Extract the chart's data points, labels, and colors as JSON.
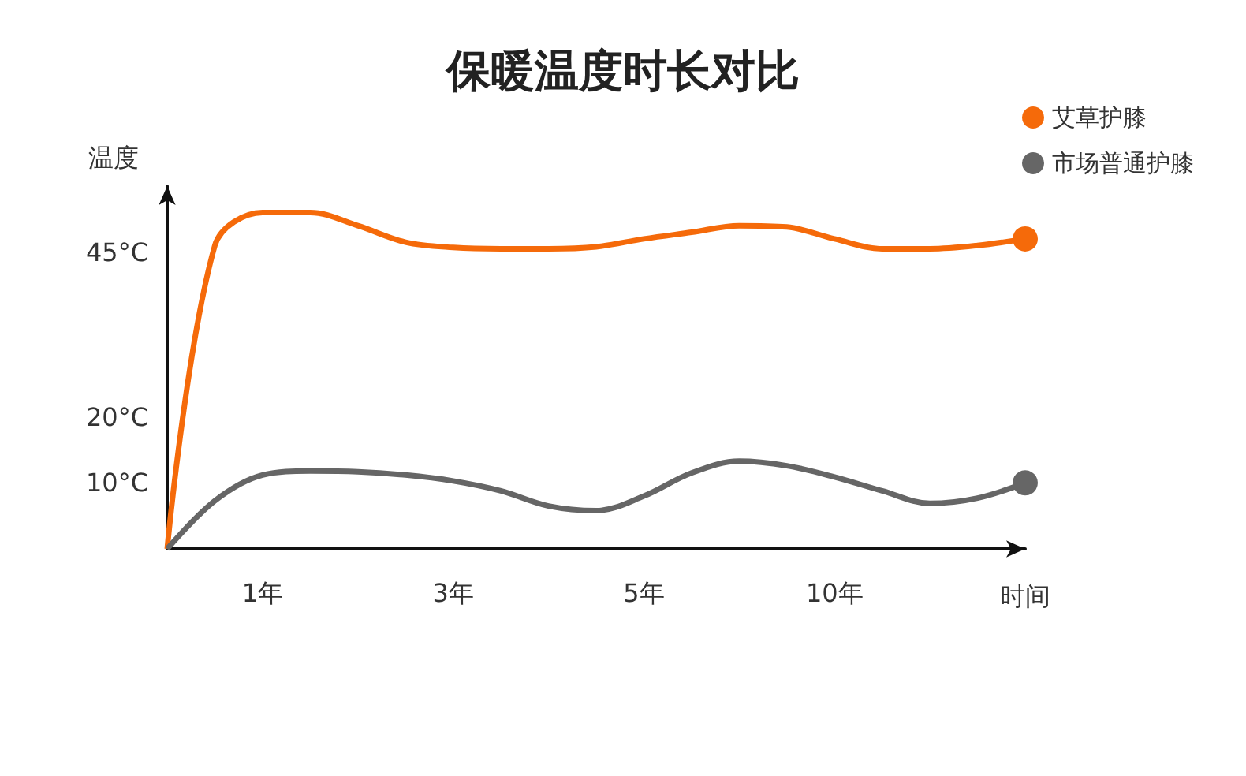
{
  "chart_data": {
    "type": "line",
    "title": "保暖温度时长对比",
    "xlabel": "时间",
    "ylabel": "温度",
    "categories": [
      null,
      null,
      "1年",
      null,
      null,
      null,
      "3年",
      null,
      null,
      null,
      "5年",
      null,
      null,
      null,
      "10年",
      null,
      null,
      null,
      null
    ],
    "series": [
      {
        "name": "艾草护膝",
        "color": "#f56a0a",
        "values": [
          0,
          46,
          51,
          51,
          49,
          46.5,
          45.7,
          45.5,
          45.5,
          45.8,
          47,
          48,
          49,
          48.8,
          47,
          45.5,
          45.5,
          46,
          47
        ]
      },
      {
        "name": "市场普通护膝",
        "color": "#666666",
        "values": [
          0,
          7.3,
          11.2,
          11.8,
          11.7,
          11.2,
          10.3,
          8.8,
          6.5,
          5.8,
          8,
          11.5,
          13.3,
          12.6,
          10.9,
          8.8,
          6.9,
          7.7,
          10
        ]
      }
    ],
    "ylim": [
      0,
      55
    ],
    "yticks": [
      {
        "value": 10,
        "label": "10°C"
      },
      {
        "value": 20,
        "label": "20°C"
      },
      {
        "value": 45,
        "label": "45°C"
      }
    ],
    "grid": false,
    "legend": "top right"
  }
}
